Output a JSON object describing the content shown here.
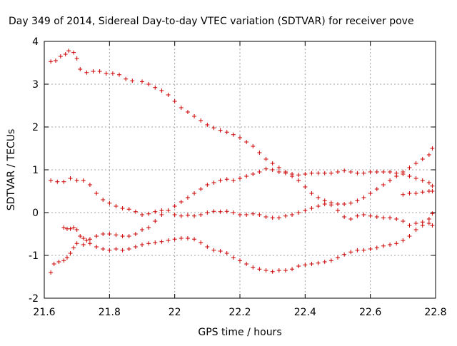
{
  "chart_data": {
    "type": "scatter",
    "title": "Day 349 of 2014, Sidereal Day-to-day VTEC variation (SDTVAR) for receiver pove",
    "xlabel": "GPS time / hours",
    "ylabel": "SDTVAR / TECUs",
    "xlim": [
      21.6,
      22.8
    ],
    "ylim": [
      -2,
      4
    ],
    "xticks": [
      21.6,
      21.8,
      22.0,
      22.2,
      22.4,
      22.6,
      22.8
    ],
    "xtick_labels": [
      "21.6",
      "21.8",
      "22",
      "22.2",
      "22.4",
      "22.6",
      "22.8"
    ],
    "yticks": [
      -2,
      -1,
      0,
      1,
      2,
      3,
      4
    ],
    "ytick_labels": [
      "-2",
      "-1",
      "0",
      "1",
      "2",
      "3",
      "4"
    ],
    "grid": true,
    "marker": "+",
    "color": "#cc0000",
    "series": [
      {
        "name": "series-1",
        "points": [
          [
            21.62,
            3.53
          ],
          [
            21.635,
            3.55
          ],
          [
            21.65,
            3.65
          ],
          [
            21.665,
            3.7
          ],
          [
            21.675,
            3.78
          ],
          [
            21.69,
            3.74
          ],
          [
            21.7,
            3.6
          ],
          [
            21.71,
            3.35
          ],
          [
            21.73,
            3.27
          ],
          [
            21.75,
            3.3
          ],
          [
            21.77,
            3.3
          ],
          [
            21.79,
            3.25
          ],
          [
            21.81,
            3.25
          ],
          [
            21.83,
            3.22
          ],
          [
            21.85,
            3.12
          ],
          [
            21.87,
            3.08
          ],
          [
            21.9,
            3.06
          ],
          [
            21.92,
            3.0
          ],
          [
            21.94,
            2.92
          ],
          [
            21.96,
            2.85
          ],
          [
            21.98,
            2.75
          ],
          [
            22.0,
            2.6
          ],
          [
            22.02,
            2.45
          ],
          [
            22.04,
            2.35
          ],
          [
            22.06,
            2.25
          ],
          [
            22.08,
            2.15
          ],
          [
            22.1,
            2.05
          ],
          [
            22.12,
            1.98
          ],
          [
            22.14,
            1.92
          ],
          [
            22.16,
            1.88
          ],
          [
            22.18,
            1.82
          ],
          [
            22.2,
            1.75
          ],
          [
            22.22,
            1.65
          ],
          [
            22.24,
            1.55
          ],
          [
            22.26,
            1.4
          ],
          [
            22.28,
            1.25
          ],
          [
            22.3,
            1.15
          ],
          [
            22.32,
            1.05
          ],
          [
            22.34,
            0.95
          ],
          [
            22.36,
            0.85
          ],
          [
            22.38,
            0.75
          ],
          [
            22.4,
            0.6
          ],
          [
            22.42,
            0.45
          ],
          [
            22.44,
            0.35
          ],
          [
            22.46,
            0.28
          ],
          [
            22.48,
            0.23
          ],
          [
            22.5,
            0.2
          ],
          [
            22.52,
            0.2
          ],
          [
            22.54,
            0.22
          ],
          [
            22.56,
            0.28
          ],
          [
            22.58,
            0.35
          ],
          [
            22.6,
            0.45
          ],
          [
            22.62,
            0.55
          ],
          [
            22.64,
            0.65
          ],
          [
            22.66,
            0.75
          ],
          [
            22.68,
            0.85
          ],
          [
            22.7,
            0.95
          ],
          [
            22.72,
            1.05
          ],
          [
            22.74,
            1.15
          ],
          [
            22.76,
            1.25
          ],
          [
            22.78,
            1.35
          ],
          [
            22.79,
            1.5
          ]
        ]
      },
      {
        "name": "series-2",
        "points": [
          [
            21.62,
            0.75
          ],
          [
            21.64,
            0.72
          ],
          [
            21.66,
            0.72
          ],
          [
            21.68,
            0.8
          ],
          [
            21.7,
            0.75
          ],
          [
            21.72,
            0.75
          ],
          [
            21.74,
            0.65
          ],
          [
            21.76,
            0.45
          ],
          [
            21.78,
            0.3
          ],
          [
            21.8,
            0.22
          ],
          [
            21.82,
            0.15
          ],
          [
            21.84,
            0.1
          ],
          [
            21.86,
            0.08
          ],
          [
            21.88,
            0.02
          ],
          [
            21.9,
            -0.05
          ],
          [
            21.92,
            -0.03
          ],
          [
            21.94,
            0.02
          ],
          [
            21.96,
            0.05
          ],
          [
            21.98,
            0.05
          ],
          [
            22.0,
            -0.05
          ],
          [
            22.02,
            -0.08
          ],
          [
            22.04,
            -0.06
          ],
          [
            22.06,
            -0.08
          ],
          [
            22.08,
            -0.05
          ],
          [
            22.1,
            0.0
          ],
          [
            22.12,
            0.03
          ],
          [
            22.14,
            0.02
          ],
          [
            22.16,
            0.03
          ],
          [
            22.18,
            0.0
          ],
          [
            22.2,
            -0.05
          ],
          [
            22.22,
            -0.05
          ],
          [
            22.24,
            -0.03
          ],
          [
            22.26,
            -0.05
          ],
          [
            22.28,
            -0.1
          ],
          [
            22.3,
            -0.12
          ],
          [
            22.32,
            -0.12
          ],
          [
            22.34,
            -0.08
          ],
          [
            22.36,
            -0.05
          ],
          [
            22.38,
            0.0
          ],
          [
            22.4,
            0.05
          ],
          [
            22.42,
            0.1
          ],
          [
            22.44,
            0.15
          ],
          [
            22.46,
            0.2
          ],
          [
            22.48,
            0.18
          ],
          [
            22.5,
            0.05
          ],
          [
            22.52,
            -0.1
          ],
          [
            22.54,
            -0.15
          ],
          [
            22.56,
            -0.08
          ],
          [
            22.58,
            -0.05
          ],
          [
            22.6,
            -0.08
          ],
          [
            22.62,
            -0.1
          ],
          [
            22.64,
            -0.12
          ],
          [
            22.66,
            -0.12
          ],
          [
            22.68,
            -0.15
          ],
          [
            22.7,
            -0.2
          ],
          [
            22.72,
            -0.3
          ],
          [
            22.74,
            -0.25
          ],
          [
            22.76,
            -0.22
          ],
          [
            22.78,
            -0.25
          ],
          [
            22.79,
            -0.3
          ]
        ]
      },
      {
        "name": "series-3",
        "points": [
          [
            21.62,
            -1.4
          ],
          [
            21.63,
            -1.2
          ],
          [
            21.645,
            -1.15
          ],
          [
            21.66,
            -1.12
          ],
          [
            21.67,
            -1.05
          ],
          [
            21.68,
            -0.95
          ],
          [
            21.69,
            -0.82
          ],
          [
            21.7,
            -0.72
          ],
          [
            21.72,
            -0.75
          ],
          [
            21.74,
            -0.62
          ],
          [
            21.76,
            -0.55
          ],
          [
            21.78,
            -0.5
          ],
          [
            21.8,
            -0.5
          ],
          [
            21.82,
            -0.52
          ],
          [
            21.84,
            -0.55
          ],
          [
            21.86,
            -0.55
          ],
          [
            21.88,
            -0.5
          ],
          [
            21.9,
            -0.4
          ],
          [
            21.92,
            -0.35
          ],
          [
            21.94,
            -0.2
          ],
          [
            21.96,
            -0.05
          ],
          [
            21.98,
            0.05
          ],
          [
            22.0,
            0.15
          ],
          [
            22.02,
            0.25
          ],
          [
            22.04,
            0.35
          ],
          [
            22.06,
            0.45
          ],
          [
            22.08,
            0.55
          ],
          [
            22.1,
            0.65
          ],
          [
            22.12,
            0.7
          ],
          [
            22.14,
            0.75
          ],
          [
            22.16,
            0.78
          ],
          [
            22.18,
            0.75
          ],
          [
            22.2,
            0.8
          ],
          [
            22.22,
            0.85
          ],
          [
            22.24,
            0.9
          ],
          [
            22.26,
            0.95
          ],
          [
            22.28,
            1.02
          ],
          [
            22.3,
            1.0
          ],
          [
            22.32,
            0.95
          ],
          [
            22.34,
            0.92
          ],
          [
            22.36,
            0.9
          ],
          [
            22.38,
            0.88
          ],
          [
            22.4,
            0.9
          ],
          [
            22.42,
            0.92
          ],
          [
            22.44,
            0.92
          ],
          [
            22.46,
            0.92
          ],
          [
            22.48,
            0.92
          ],
          [
            22.5,
            0.95
          ],
          [
            22.52,
            0.98
          ],
          [
            22.54,
            0.95
          ],
          [
            22.56,
            0.92
          ],
          [
            22.58,
            0.92
          ],
          [
            22.6,
            0.95
          ],
          [
            22.62,
            0.95
          ],
          [
            22.64,
            0.95
          ],
          [
            22.66,
            0.95
          ],
          [
            22.68,
            0.92
          ],
          [
            22.7,
            0.9
          ],
          [
            22.72,
            0.85
          ],
          [
            22.74,
            0.8
          ],
          [
            22.76,
            0.75
          ],
          [
            22.78,
            0.7
          ],
          [
            22.79,
            0.62
          ]
        ]
      },
      {
        "name": "series-4",
        "points": [
          [
            21.66,
            -0.35
          ],
          [
            21.67,
            -0.38
          ],
          [
            21.68,
            -0.38
          ],
          [
            21.69,
            -0.35
          ],
          [
            21.7,
            -0.4
          ],
          [
            21.71,
            -0.55
          ],
          [
            21.72,
            -0.6
          ],
          [
            21.73,
            -0.65
          ],
          [
            21.74,
            -0.72
          ],
          [
            21.76,
            -0.8
          ],
          [
            21.78,
            -0.85
          ],
          [
            21.8,
            -0.88
          ],
          [
            21.82,
            -0.85
          ],
          [
            21.84,
            -0.88
          ],
          [
            21.86,
            -0.85
          ],
          [
            21.88,
            -0.8
          ],
          [
            21.9,
            -0.75
          ],
          [
            21.92,
            -0.72
          ],
          [
            21.94,
            -0.7
          ],
          [
            21.96,
            -0.68
          ],
          [
            21.98,
            -0.65
          ],
          [
            22.0,
            -0.62
          ],
          [
            22.02,
            -0.6
          ],
          [
            22.04,
            -0.6
          ],
          [
            22.06,
            -0.62
          ],
          [
            22.08,
            -0.7
          ],
          [
            22.1,
            -0.8
          ],
          [
            22.12,
            -0.88
          ],
          [
            22.14,
            -0.9
          ],
          [
            22.16,
            -0.95
          ],
          [
            22.18,
            -1.05
          ],
          [
            22.2,
            -1.12
          ],
          [
            22.22,
            -1.2
          ],
          [
            22.24,
            -1.28
          ],
          [
            22.26,
            -1.32
          ],
          [
            22.28,
            -1.35
          ],
          [
            22.3,
            -1.38
          ],
          [
            22.32,
            -1.35
          ],
          [
            22.34,
            -1.35
          ],
          [
            22.36,
            -1.32
          ],
          [
            22.38,
            -1.25
          ],
          [
            22.4,
            -1.22
          ],
          [
            22.42,
            -1.2
          ],
          [
            22.44,
            -1.18
          ],
          [
            22.46,
            -1.15
          ],
          [
            22.48,
            -1.12
          ],
          [
            22.5,
            -1.05
          ],
          [
            22.52,
            -0.98
          ],
          [
            22.54,
            -0.92
          ],
          [
            22.56,
            -0.88
          ],
          [
            22.58,
            -0.88
          ],
          [
            22.6,
            -0.85
          ],
          [
            22.62,
            -0.82
          ],
          [
            22.64,
            -0.78
          ],
          [
            22.66,
            -0.75
          ],
          [
            22.68,
            -0.72
          ],
          [
            22.7,
            -0.65
          ],
          [
            22.72,
            -0.55
          ],
          [
            22.74,
            -0.4
          ],
          [
            22.76,
            -0.3
          ],
          [
            22.78,
            -0.15
          ],
          [
            22.79,
            -0.02
          ]
        ]
      },
      {
        "name": "series-5",
        "points": [
          [
            22.7,
            0.42
          ],
          [
            22.72,
            0.45
          ],
          [
            22.74,
            0.45
          ],
          [
            22.76,
            0.48
          ],
          [
            22.78,
            0.5
          ],
          [
            22.79,
            0.5
          ]
        ]
      }
    ]
  }
}
